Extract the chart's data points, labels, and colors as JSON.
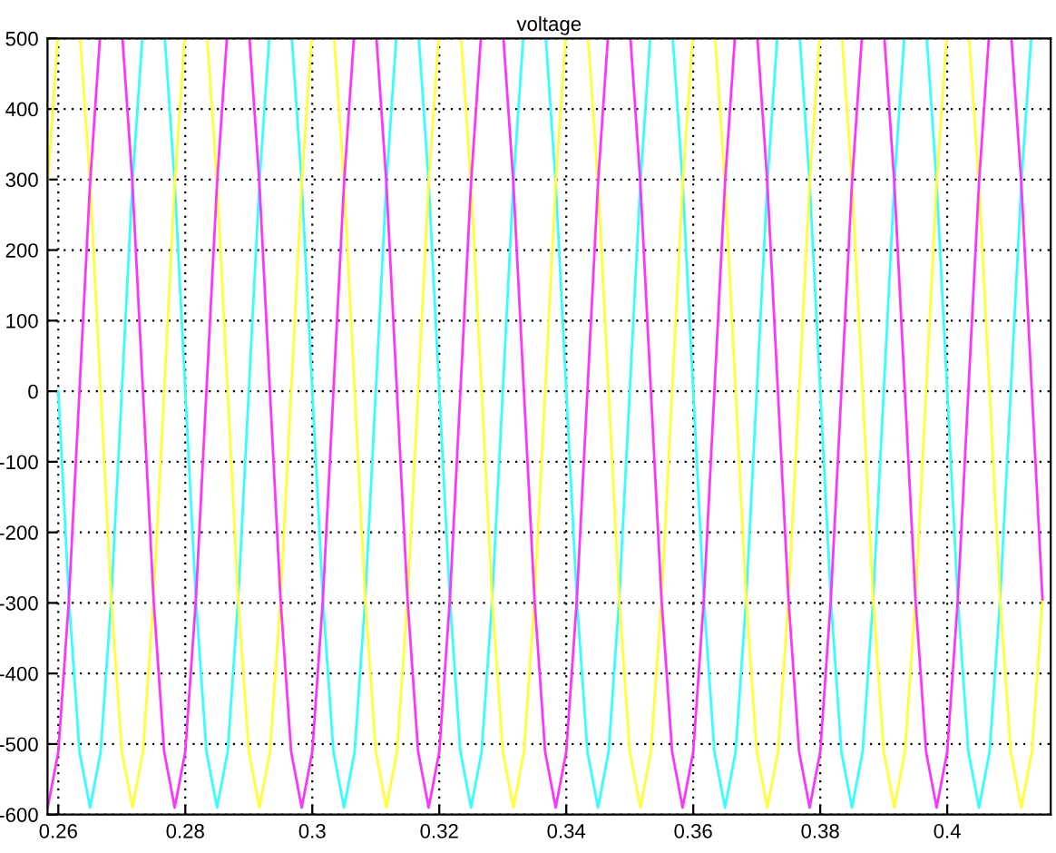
{
  "chart_data": {
    "type": "line",
    "title": "voltage",
    "xlim": [
      0.2583,
      0.4163
    ],
    "ylim": [
      -600,
      500
    ],
    "xticks": [
      0.26,
      0.28,
      0.3,
      0.32,
      0.34,
      0.36,
      0.38,
      0.4
    ],
    "yticks": [
      -600,
      -500,
      -400,
      -300,
      -200,
      -100,
      0,
      100,
      200,
      300,
      400,
      500
    ],
    "grid": true,
    "legend": false,
    "line_style": "solid",
    "marker": "none",
    "series": [
      {
        "color": "#33ffff",
        "x": [
          0.26,
          0.26167,
          0.26333,
          0.265,
          0.26667,
          0.26833,
          0.27,
          0.27167,
          0.27322,
          0.275,
          0.27678,
          0.27833,
          0.28,
          0.28167,
          0.28333,
          0.285,
          0.28667,
          0.28833,
          0.29,
          0.29167,
          0.29322,
          0.295,
          0.29678,
          0.29833,
          0.3,
          0.30167,
          0.30333,
          0.305,
          0.30667,
          0.30833,
          0.31,
          0.31167,
          0.31322,
          0.315,
          0.31678,
          0.31833,
          0.32,
          0.32167,
          0.32333,
          0.325,
          0.32667,
          0.32833,
          0.33,
          0.33167,
          0.33322,
          0.335,
          0.33678,
          0.33833,
          0.34,
          0.34167,
          0.34333,
          0.345,
          0.34667,
          0.34833,
          0.35,
          0.35167,
          0.35322,
          0.355,
          0.35678,
          0.35833,
          0.36,
          0.36167,
          0.36333,
          0.365,
          0.36667,
          0.36833,
          0.37,
          0.37167,
          0.37322,
          0.375,
          0.37678,
          0.37833,
          0.38,
          0.38167,
          0.38333,
          0.385,
          0.38667,
          0.38833,
          0.39,
          0.39167,
          0.39322,
          0.395,
          0.39678,
          0.39833,
          0.4,
          0.40167,
          0.40333,
          0.405,
          0.40667,
          0.40833,
          0.41,
          0.41167,
          0.41322
        ],
        "values": [
          0,
          -295,
          -511,
          -590,
          -511,
          -295,
          0,
          295,
          500,
          null,
          500,
          295,
          0,
          -295,
          -511,
          -590,
          -511,
          -295,
          0,
          295,
          500,
          null,
          500,
          295,
          0,
          -295,
          -511,
          -590,
          -511,
          -295,
          0,
          295,
          500,
          null,
          500,
          295,
          0,
          -295,
          -511,
          -590,
          -511,
          -295,
          0,
          295,
          500,
          null,
          500,
          295,
          0,
          -295,
          -511,
          -590,
          -511,
          -295,
          0,
          295,
          500,
          null,
          500,
          295,
          0,
          -295,
          -511,
          -590,
          -511,
          -295,
          0,
          295,
          500,
          null,
          500,
          295,
          0,
          -295,
          -511,
          -590,
          -511,
          -295,
          0,
          295,
          500,
          null,
          500,
          295,
          0,
          -295,
          -511,
          -590,
          -511,
          -295,
          0,
          295,
          500
        ]
      },
      {
        "color": "#ffff33",
        "x": [
          0.25833,
          0.25989,
          0.26167,
          0.26344,
          0.265,
          0.26667,
          0.26833,
          0.27,
          0.27167,
          0.27333,
          0.275,
          0.27667,
          0.27833,
          0.27989,
          0.28167,
          0.28344,
          0.285,
          0.28667,
          0.28833,
          0.29,
          0.29167,
          0.29333,
          0.295,
          0.29667,
          0.29833,
          0.29989,
          0.30167,
          0.30344,
          0.305,
          0.30667,
          0.30833,
          0.31,
          0.31167,
          0.31333,
          0.315,
          0.31667,
          0.31833,
          0.31989,
          0.32167,
          0.32344,
          0.325,
          0.32667,
          0.32833,
          0.33,
          0.33167,
          0.33333,
          0.335,
          0.33667,
          0.33833,
          0.33989,
          0.34167,
          0.34344,
          0.345,
          0.34667,
          0.34833,
          0.35,
          0.35167,
          0.35333,
          0.355,
          0.35667,
          0.35833,
          0.35989,
          0.36167,
          0.36344,
          0.365,
          0.36667,
          0.36833,
          0.37,
          0.37167,
          0.37333,
          0.375,
          0.37667,
          0.37833,
          0.37989,
          0.38167,
          0.38344,
          0.385,
          0.38667,
          0.38833,
          0.39,
          0.39167,
          0.39333,
          0.395,
          0.39667,
          0.39833,
          0.39989,
          0.40167,
          0.40344,
          0.405,
          0.40667,
          0.40833,
          0.41,
          0.41167,
          0.41333,
          0.415
        ],
        "values": [
          295,
          500,
          null,
          500,
          295,
          0,
          -295,
          -511,
          -590,
          -511,
          -295,
          0,
          295,
          500,
          null,
          500,
          295,
          0,
          -295,
          -511,
          -590,
          -511,
          -295,
          0,
          295,
          500,
          null,
          500,
          295,
          0,
          -295,
          -511,
          -590,
          -511,
          -295,
          0,
          295,
          500,
          null,
          500,
          295,
          0,
          -295,
          -511,
          -590,
          -511,
          -295,
          0,
          295,
          500,
          null,
          500,
          295,
          0,
          -295,
          -511,
          -590,
          -511,
          -295,
          0,
          295,
          500,
          null,
          500,
          295,
          0,
          -295,
          -511,
          -590,
          -511,
          -295,
          0,
          295,
          500,
          null,
          500,
          295,
          0,
          -295,
          -511,
          -590,
          -511,
          -295,
          0,
          295,
          500,
          null,
          500,
          295,
          0,
          -295,
          -511,
          -590,
          -511,
          -295
        ]
      },
      {
        "color": "#ff33ff",
        "x": [
          0.25833,
          0.26,
          0.26167,
          0.26333,
          0.265,
          0.26655,
          0.26833,
          0.27011,
          0.27167,
          0.27333,
          0.275,
          0.27667,
          0.27833,
          0.28,
          0.28167,
          0.28333,
          0.285,
          0.28655,
          0.28833,
          0.29011,
          0.29167,
          0.29333,
          0.295,
          0.29667,
          0.29833,
          0.3,
          0.30167,
          0.30333,
          0.305,
          0.30655,
          0.30833,
          0.31011,
          0.31167,
          0.31333,
          0.315,
          0.31667,
          0.31833,
          0.32,
          0.32167,
          0.32333,
          0.325,
          0.32655,
          0.32833,
          0.33011,
          0.33167,
          0.33333,
          0.335,
          0.33667,
          0.33833,
          0.34,
          0.34167,
          0.34333,
          0.345,
          0.34655,
          0.34833,
          0.35011,
          0.35167,
          0.35333,
          0.355,
          0.35667,
          0.35833,
          0.36,
          0.36167,
          0.36333,
          0.365,
          0.36655,
          0.36833,
          0.37011,
          0.37167,
          0.37333,
          0.375,
          0.37667,
          0.37833,
          0.38,
          0.38167,
          0.38333,
          0.385,
          0.38655,
          0.38833,
          0.39011,
          0.39167,
          0.39333,
          0.395,
          0.39667,
          0.39833,
          0.4,
          0.40167,
          0.40333,
          0.405,
          0.40655,
          0.40833,
          0.41011,
          0.41167,
          0.41333,
          0.415
        ],
        "values": [
          -590,
          -511,
          -295,
          0,
          295,
          500,
          null,
          500,
          295,
          0,
          -295,
          -511,
          -590,
          -511,
          -295,
          0,
          295,
          500,
          null,
          500,
          295,
          0,
          -295,
          -511,
          -590,
          -511,
          -295,
          0,
          295,
          500,
          null,
          500,
          295,
          0,
          -295,
          -511,
          -590,
          -511,
          -295,
          0,
          295,
          500,
          null,
          500,
          295,
          0,
          -295,
          -511,
          -590,
          -511,
          -295,
          0,
          295,
          500,
          null,
          500,
          295,
          0,
          -295,
          -511,
          -590,
          -511,
          -295,
          0,
          295,
          500,
          null,
          500,
          295,
          0,
          -295,
          -511,
          -590,
          -511,
          -295,
          0,
          295,
          500,
          null,
          500,
          295,
          0,
          -295,
          -511,
          -590,
          -511,
          -295,
          0,
          295,
          500,
          null,
          500,
          295,
          0,
          -295
        ]
      }
    ]
  }
}
